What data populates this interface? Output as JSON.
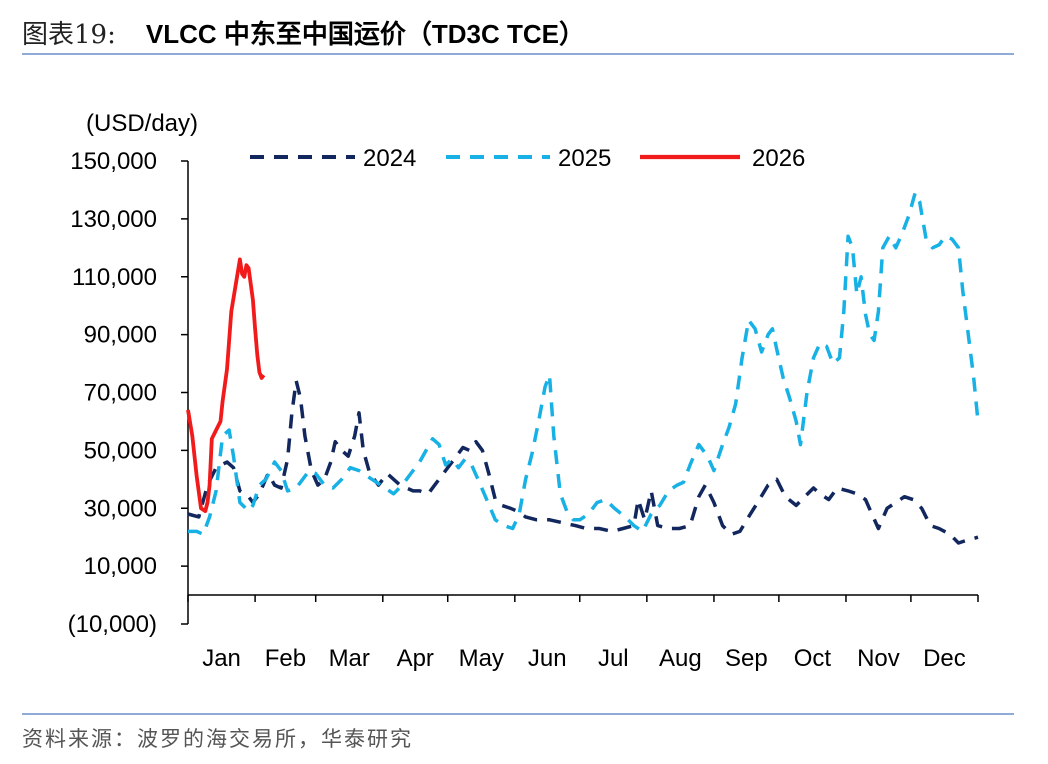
{
  "header": {
    "figure_label": "图表19:",
    "title": "VLCC 中东至中国运价（TD3C TCE）"
  },
  "footer": {
    "source": "资料来源：波罗的海交易所，华泰研究"
  },
  "colors": {
    "s2024": "#12275e",
    "s2025": "#17b1e6",
    "s2026": "#f21b1b",
    "rule": "#8faad6"
  },
  "chart_data": {
    "type": "line",
    "title": "VLCC 中东至中国运价（TD3C TCE）",
    "unit_label": "(USD/day)",
    "ylim": [
      -10000,
      150000
    ],
    "yticks": [
      -10000,
      10000,
      30000,
      50000,
      70000,
      90000,
      110000,
      130000,
      150000
    ],
    "ytick_labels": [
      "(10,000)",
      "10,000",
      "30,000",
      "50,000",
      "70,000",
      "90,000",
      "110,000",
      "130,000",
      "150,000"
    ],
    "xlim": [
      0,
      365
    ],
    "months": [
      "Jan",
      "Feb",
      "Mar",
      "Apr",
      "May",
      "Jun",
      "Jul",
      "Aug",
      "Sep",
      "Oct",
      "Nov",
      "Dec"
    ],
    "month_start_days": [
      0,
      31,
      59,
      90,
      120,
      151,
      181,
      212,
      243,
      273,
      304,
      334
    ],
    "legend_position": "top",
    "series": [
      {
        "name": "2024",
        "style": "dashed",
        "points": [
          [
            0,
            28000
          ],
          [
            5,
            27000
          ],
          [
            9,
            38000
          ],
          [
            13,
            44000
          ],
          [
            18,
            46000
          ],
          [
            21,
            44000
          ],
          [
            24,
            36000
          ],
          [
            28,
            34000
          ],
          [
            30,
            32000
          ],
          [
            33,
            35000
          ],
          [
            37,
            42000
          ],
          [
            40,
            38000
          ],
          [
            43,
            37000
          ],
          [
            46,
            47000
          ],
          [
            48,
            63000
          ],
          [
            50,
            74000
          ],
          [
            52,
            68000
          ],
          [
            54,
            55000
          ],
          [
            57,
            43000
          ],
          [
            60,
            38000
          ],
          [
            63,
            40000
          ],
          [
            66,
            46000
          ],
          [
            68,
            53000
          ],
          [
            71,
            50000
          ],
          [
            74,
            48000
          ],
          [
            77,
            55000
          ],
          [
            79,
            63000
          ],
          [
            81,
            50000
          ],
          [
            84,
            42000
          ],
          [
            88,
            38000
          ],
          [
            92,
            42000
          ],
          [
            95,
            40000
          ],
          [
            98,
            38000
          ],
          [
            101,
            37000
          ],
          [
            104,
            36000
          ],
          [
            107,
            36000
          ],
          [
            111,
            35000
          ],
          [
            114,
            38000
          ],
          [
            118,
            42000
          ],
          [
            121,
            45000
          ],
          [
            124,
            48000
          ],
          [
            127,
            51000
          ],
          [
            130,
            50000
          ],
          [
            133,
            53000
          ],
          [
            136,
            50000
          ],
          [
            139,
            42000
          ],
          [
            142,
            33000
          ],
          [
            145,
            31000
          ],
          [
            149,
            30000
          ],
          [
            152,
            29000
          ],
          [
            156,
            27000
          ],
          [
            161,
            26000
          ],
          [
            167,
            26000
          ],
          [
            173,
            25000
          ],
          [
            179,
            24000
          ],
          [
            184,
            23000
          ],
          [
            190,
            23000
          ],
          [
            196,
            22000
          ],
          [
            201,
            23000
          ],
          [
            206,
            24000
          ],
          [
            208,
            33000
          ],
          [
            211,
            26000
          ],
          [
            214,
            36000
          ],
          [
            217,
            24000
          ],
          [
            222,
            23000
          ],
          [
            227,
            23000
          ],
          [
            232,
            24000
          ],
          [
            236,
            34000
          ],
          [
            239,
            38000
          ],
          [
            243,
            32000
          ],
          [
            247,
            24000
          ],
          [
            251,
            21000
          ],
          [
            255,
            22000
          ],
          [
            259,
            27000
          ],
          [
            264,
            33000
          ],
          [
            268,
            38000
          ],
          [
            272,
            40000
          ],
          [
            276,
            34000
          ],
          [
            281,
            31000
          ],
          [
            285,
            34000
          ],
          [
            289,
            37000
          ],
          [
            292,
            35000
          ],
          [
            296,
            33000
          ],
          [
            300,
            37000
          ],
          [
            305,
            36000
          ],
          [
            309,
            35000
          ],
          [
            313,
            33000
          ],
          [
            316,
            28000
          ],
          [
            319,
            23000
          ],
          [
            323,
            30000
          ],
          [
            327,
            32000
          ],
          [
            331,
            34000
          ],
          [
            335,
            33000
          ],
          [
            339,
            30000
          ],
          [
            343,
            24000
          ],
          [
            347,
            23000
          ],
          [
            352,
            21000
          ],
          [
            356,
            18000
          ],
          [
            360,
            19000
          ],
          [
            365,
            20000
          ]
        ]
      },
      {
        "name": "2025",
        "style": "dashed",
        "points": [
          [
            0,
            22000
          ],
          [
            4,
            22000
          ],
          [
            7,
            21000
          ],
          [
            10,
            27000
          ],
          [
            13,
            36000
          ],
          [
            16,
            55000
          ],
          [
            19,
            57000
          ],
          [
            21,
            48000
          ],
          [
            24,
            32000
          ],
          [
            28,
            29000
          ],
          [
            30,
            31000
          ],
          [
            33,
            38000
          ],
          [
            36,
            40000
          ],
          [
            40,
            46000
          ],
          [
            43,
            43000
          ],
          [
            46,
            36000
          ],
          [
            50,
            37000
          ],
          [
            53,
            40000
          ],
          [
            56,
            43000
          ],
          [
            59,
            42000
          ],
          [
            63,
            38000
          ],
          [
            67,
            37000
          ],
          [
            71,
            40000
          ],
          [
            75,
            44000
          ],
          [
            79,
            43000
          ],
          [
            83,
            41000
          ],
          [
            87,
            39000
          ],
          [
            91,
            37000
          ],
          [
            95,
            35000
          ],
          [
            99,
            38000
          ],
          [
            103,
            42000
          ],
          [
            107,
            46000
          ],
          [
            110,
            50000
          ],
          [
            113,
            54000
          ],
          [
            116,
            52000
          ],
          [
            119,
            45000
          ],
          [
            122,
            47000
          ],
          [
            125,
            44000
          ],
          [
            128,
            47000
          ],
          [
            131,
            45000
          ],
          [
            134,
            40000
          ],
          [
            138,
            33000
          ],
          [
            142,
            26000
          ],
          [
            146,
            24000
          ],
          [
            150,
            23000
          ],
          [
            153,
            28000
          ],
          [
            156,
            40000
          ],
          [
            159,
            49000
          ],
          [
            162,
            60000
          ],
          [
            165,
            72000
          ],
          [
            167,
            76000
          ],
          [
            169,
            55000
          ],
          [
            172,
            35000
          ],
          [
            175,
            29000
          ],
          [
            178,
            26000
          ],
          [
            181,
            26000
          ],
          [
            185,
            28000
          ],
          [
            189,
            32000
          ],
          [
            193,
            33000
          ],
          [
            197,
            30000
          ],
          [
            202,
            27000
          ],
          [
            206,
            24000
          ],
          [
            210,
            22000
          ],
          [
            214,
            28000
          ],
          [
            218,
            31000
          ],
          [
            222,
            36000
          ],
          [
            226,
            38000
          ],
          [
            229,
            39000
          ],
          [
            232,
            45000
          ],
          [
            236,
            52000
          ],
          [
            240,
            48000
          ],
          [
            243,
            43000
          ],
          [
            247,
            52000
          ],
          [
            250,
            58000
          ],
          [
            253,
            66000
          ],
          [
            256,
            82000
          ],
          [
            259,
            95000
          ],
          [
            262,
            92000
          ],
          [
            265,
            84000
          ],
          [
            268,
            90000
          ],
          [
            270,
            92000
          ],
          [
            272,
            85000
          ],
          [
            275,
            75000
          ],
          [
            278,
            68000
          ],
          [
            281,
            60000
          ],
          [
            283,
            52000
          ],
          [
            286,
            70000
          ],
          [
            289,
            82000
          ],
          [
            292,
            87000
          ],
          [
            295,
            86000
          ],
          [
            298,
            80000
          ],
          [
            301,
            82000
          ],
          [
            303,
            98000
          ],
          [
            305,
            124000
          ],
          [
            307,
            120000
          ],
          [
            309,
            104000
          ],
          [
            311,
            110000
          ],
          [
            313,
            97000
          ],
          [
            315,
            90000
          ],
          [
            317,
            88000
          ],
          [
            319,
            98000
          ],
          [
            321,
            120000
          ],
          [
            324,
            124000
          ],
          [
            327,
            120000
          ],
          [
            330,
            125000
          ],
          [
            333,
            131000
          ],
          [
            336,
            139000
          ],
          [
            338,
            136000
          ],
          [
            341,
            123000
          ],
          [
            344,
            120000
          ],
          [
            347,
            121000
          ],
          [
            350,
            124000
          ],
          [
            353,
            123000
          ],
          [
            356,
            120000
          ],
          [
            358,
            105000
          ],
          [
            360,
            93000
          ],
          [
            363,
            75000
          ],
          [
            365,
            60000
          ]
        ]
      },
      {
        "name": "2026",
        "style": "solid",
        "points": [
          [
            0,
            64000
          ],
          [
            2,
            55000
          ],
          [
            4,
            41000
          ],
          [
            6,
            30000
          ],
          [
            8,
            29000
          ],
          [
            9,
            32000
          ],
          [
            10,
            38000
          ],
          [
            11,
            54000
          ],
          [
            13,
            57000
          ],
          [
            15,
            60000
          ],
          [
            16,
            67000
          ],
          [
            18,
            78000
          ],
          [
            20,
            98000
          ],
          [
            22,
            107000
          ],
          [
            24,
            116000
          ],
          [
            25,
            111000
          ],
          [
            26,
            110000
          ],
          [
            27,
            114000
          ],
          [
            28,
            113000
          ],
          [
            30,
            102000
          ],
          [
            31,
            92000
          ],
          [
            32,
            83000
          ],
          [
            33,
            77000
          ],
          [
            34,
            75000
          ],
          [
            35,
            76000
          ]
        ]
      }
    ]
  }
}
